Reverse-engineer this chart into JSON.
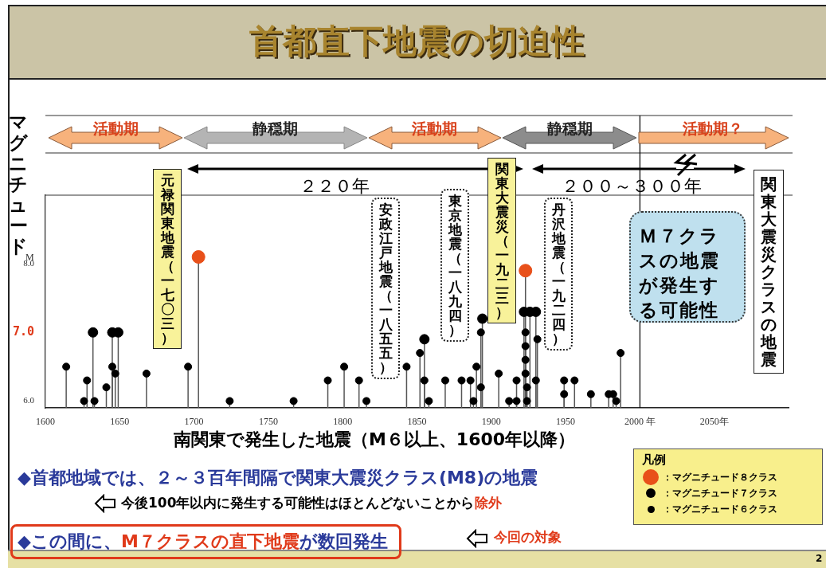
{
  "chart_data": {
    "type": "lollipop",
    "title": "首都直下地震の切迫性",
    "xlabel": "南関東で発生した地震（M６以上、1600年以降）",
    "ylabel": "マグニチュード",
    "legend_title": "凡例",
    "legend": "bottom right",
    "marker": "circle",
    "xlim": [
      1600,
      2100
    ],
    "xticks": [
      1600,
      1650,
      1700,
      1750,
      1800,
      1850,
      1900,
      1950,
      {
        "value": 2000,
        "label": "2000 年"
      },
      {
        "value": 2050,
        "label": "2050年"
      }
    ],
    "ylim": [
      5.9,
      9.0
    ],
    "yticks": [
      {
        "value": 6,
        "label": "6.0"
      },
      {
        "value": 7,
        "label": "7.0"
      },
      {
        "value": 8,
        "label": "8.0"
      }
    ],
    "series": [
      {
        "name": "：マグニチュード８クラス",
        "color": "#e8501a",
        "x": [
          1703,
          1923
        ],
        "values": [
          8.1,
          7.9
        ]
      },
      {
        "name": "：マグニチュード７クラス",
        "color": "#000000",
        "x": [
          1632,
          1645,
          1649,
          1855,
          1894,
          1922,
          1926,
          1930
        ],
        "values": [
          7.0,
          7.0,
          7.0,
          6.9,
          7.2,
          7.3,
          7.3,
          7.3
        ]
      },
      {
        "name": "：マグニチュード６クラス",
        "color": "#000000",
        "x": [
          1614,
          1626,
          1628,
          1633,
          1641,
          1645,
          1647,
          1668,
          1696,
          1724,
          1767,
          1790,
          1801,
          1811,
          1816,
          1843,
          1852,
          1855,
          1858,
          1869,
          1880,
          1886,
          1888,
          1890,
          1893,
          1893,
          1905,
          1912,
          1917,
          1917,
          1923,
          1923,
          1923,
          1923,
          1924,
          1924,
          1930,
          1931,
          1949,
          1949,
          1956,
          1967,
          1979,
          1982,
          1984,
          1987
        ],
        "values": [
          6.5,
          6.0,
          6.3,
          6.0,
          6.2,
          6.5,
          6.4,
          6.4,
          6.5,
          6.0,
          6.0,
          6.3,
          6.5,
          6.3,
          6.0,
          6.5,
          6.7,
          6.3,
          6.0,
          6.3,
          6.3,
          6.3,
          6.0,
          6.5,
          7.0,
          6.2,
          6.4,
          6.0,
          6.3,
          6.0,
          7.0,
          6.8,
          6.6,
          6.4,
          6.2,
          6.0,
          6.3,
          6.9,
          6.3,
          6.1,
          6.3,
          6.1,
          6.1,
          6.1,
          6.0,
          6.7
        ]
      }
    ],
    "ref_lines": [
      {
        "axis": "x",
        "value": 2000,
        "color": "#000000"
      }
    ],
    "annotations": [
      "活動期",
      "静穏期",
      "活動期",
      "静穏期",
      "活動期？",
      "２２０年",
      "２００～３００年",
      "元禄関東地震（一七〇三）",
      "安政江戸地震（一八五五）",
      "東京地震（一八九四）",
      "関東大震災（一九二三）",
      "丹沢地震（一九二四）",
      "M",
      "Ｍ７クラスの地震が発生する可能性",
      "関東大震災クラスの地震",
      "◆首都地域では、２～３百年間隔で関東大震災クラス(M8)の地震",
      "今後100年以内に発生する可能性はほとんどないことから",
      "除外",
      "◆この間に、",
      "M７クラスの直下地震",
      "が数回発生",
      "今回の対象",
      "2"
    ]
  }
}
